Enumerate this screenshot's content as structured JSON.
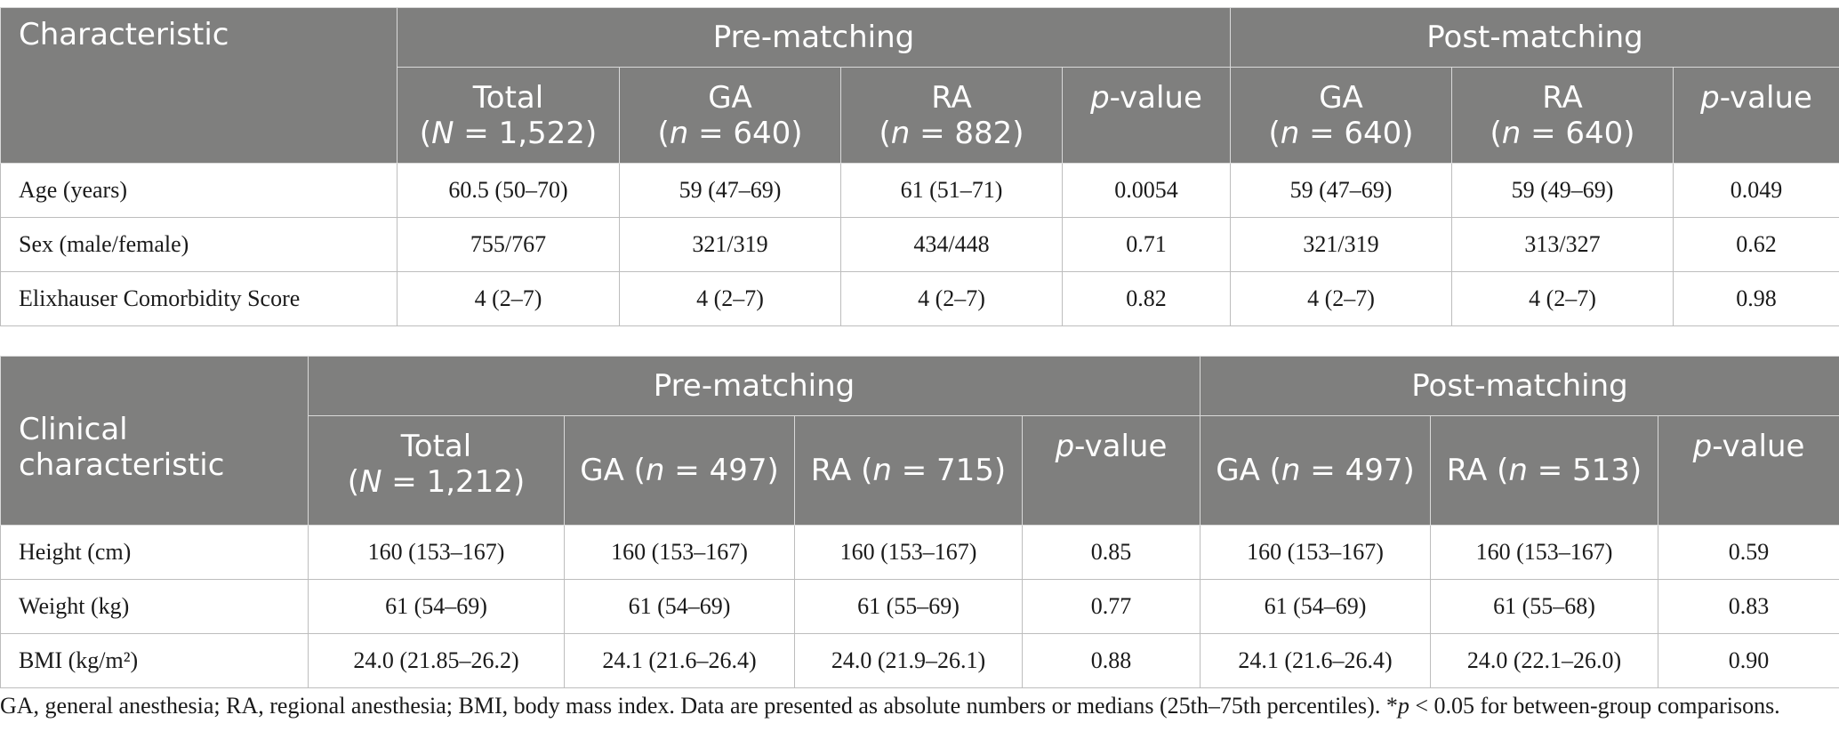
{
  "table1": {
    "corner": "Characteristic",
    "group_pre": "Pre-matching",
    "group_post": "Post-matching",
    "cols": [
      {
        "name": "Total",
        "n_pre": "(",
        "n_var": "N",
        "n_post": " = 1,522)"
      },
      {
        "name": "GA",
        "n_pre": "(",
        "n_var": "n",
        "n_post": " = 640)"
      },
      {
        "name": "RA",
        "n_pre": "(",
        "n_var": "n",
        "n_post": " = 882)"
      },
      {
        "p_var": "p",
        "p_rest": "-value"
      },
      {
        "name": "GA",
        "n_pre": "(",
        "n_var": "n",
        "n_post": " = 640)"
      },
      {
        "name": "RA",
        "n_pre": "(",
        "n_var": "n",
        "n_post": " = 640)"
      },
      {
        "p_var": "p",
        "p_rest": "-value"
      }
    ],
    "rows": [
      {
        "label": "Age (years)",
        "cells": [
          "60.5 (50–70)",
          "59 (47–69)",
          "61 (51–71)",
          "0.0054",
          "59 (47–69)",
          "59 (49–69)",
          "0.049"
        ]
      },
      {
        "label": "Sex (male/female)",
        "cells": [
          "755/767",
          "321/319",
          "434/448",
          "0.71",
          "321/319",
          "313/327",
          "0.62"
        ]
      },
      {
        "label": "Elixhauser Comorbidity Score",
        "cells": [
          "4 (2–7)",
          "4 (2–7)",
          "4 (2–7)",
          "0.82",
          "4 (2–7)",
          "4 (2–7)",
          "0.98"
        ]
      }
    ]
  },
  "table2": {
    "corner_line1": "Clinical",
    "corner_line2": "characteristic",
    "group_pre": "Pre-matching",
    "group_post": "Post-matching",
    "cols": [
      {
        "name": "Total",
        "n_pre": "(",
        "n_var": "N",
        "n_post": " = 1,212)"
      },
      {
        "name": "GA (",
        "n_var": "n",
        "n_post": " = 497)"
      },
      {
        "name": "RA (",
        "n_var": "n",
        "n_post": " = 715)"
      },
      {
        "p_var": "p",
        "p_rest": "-value"
      },
      {
        "name": "GA (",
        "n_var": "n",
        "n_post": " = 497)"
      },
      {
        "name": "RA (",
        "n_var": "n",
        "n_post": " = 513)"
      },
      {
        "p_var": "p",
        "p_rest": "-value"
      }
    ],
    "rows": [
      {
        "label": "Height (cm)",
        "cells": [
          "160 (153–167)",
          "160 (153–167)",
          "160 (153–167)",
          "0.85",
          "160 (153–167)",
          "160 (153–167)",
          "0.59"
        ]
      },
      {
        "label": "Weight (kg)",
        "cells": [
          "61 (54–69)",
          "61 (54–69)",
          "61 (55–69)",
          "0.77",
          "61 (54–69)",
          "61 (55–68)",
          "0.83"
        ]
      },
      {
        "label": "BMI (kg/m²)",
        "cells": [
          "24.0 (21.85–26.2)",
          "24.1 (21.6–26.4)",
          "24.0 (21.9–26.1)",
          "0.88",
          "24.1 (21.6–26.4)",
          "24.0 (22.1–26.0)",
          "0.90"
        ]
      }
    ]
  },
  "footnote": {
    "text_a": "GA, general anesthesia; RA, regional anesthesia; BMI, body mass index. Data are presented as absolute numbers or medians (25th–75th percentiles). *",
    "p_var": "p",
    "text_b": " < 0.05 for between-group comparisons."
  }
}
